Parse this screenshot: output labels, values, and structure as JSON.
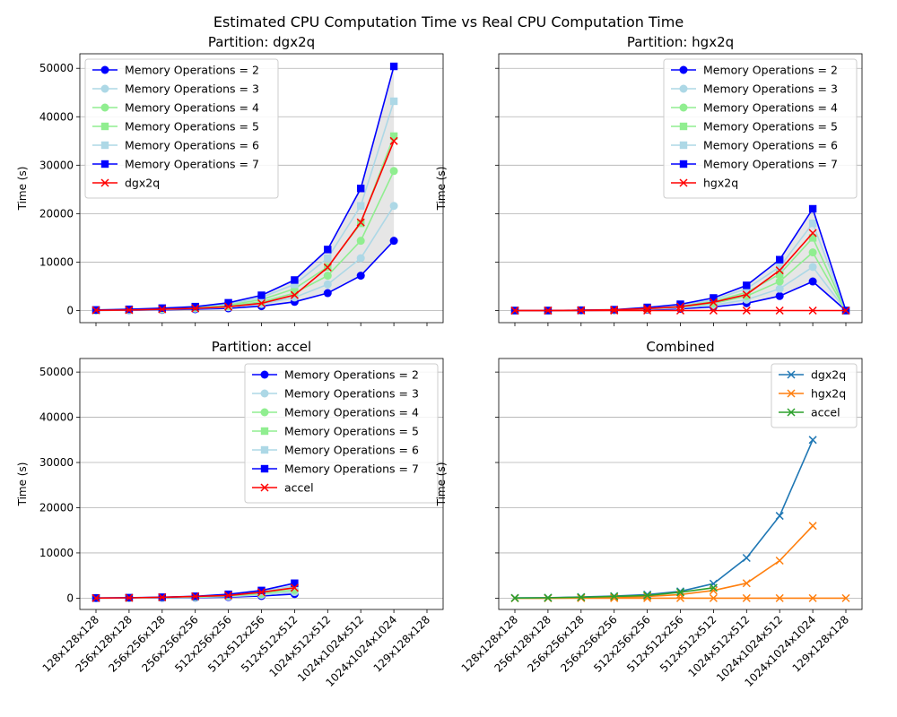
{
  "figure": {
    "title": "Estimated CPU Computation Time vs Real CPU Computation Time"
  },
  "chart_data": [
    {
      "type": "line",
      "title": "Partition: dgx2q",
      "ylabel": "Time (s)",
      "ylim": [
        -2500,
        53000
      ],
      "yticks": [
        0,
        10000,
        20000,
        30000,
        40000,
        50000
      ],
      "grid": "y",
      "legend": "top-left",
      "shade_between": [
        "Memory Operations = 2",
        "Memory Operations = 7"
      ],
      "categories": [
        "128x128x128",
        "256x128x128",
        "256x256x128",
        "256x256x256",
        "512x256x256",
        "512x512x256",
        "512x512x512",
        "1024x512x512",
        "1024x1024x512",
        "1024x1024x1024",
        "129x128x128"
      ],
      "series": [
        {
          "name": "Memory Operations = 2",
          "color": "#0000ff",
          "marker": "circle",
          "values": [
            35,
            70,
            140,
            280,
            450,
            900,
            1800,
            3600,
            7200,
            14400,
            null
          ]
        },
        {
          "name": "Memory Operations = 3",
          "color": "#add8e6",
          "marker": "circle",
          "values": [
            50,
            105,
            210,
            420,
            680,
            1350,
            2700,
            5400,
            10800,
            21600,
            null
          ]
        },
        {
          "name": "Memory Operations = 4",
          "color": "#90ee90",
          "marker": "circle",
          "values": [
            70,
            140,
            280,
            560,
            900,
            1800,
            3600,
            7200,
            14400,
            28800,
            null
          ]
        },
        {
          "name": "Memory Operations = 5",
          "color": "#90ee90",
          "marker": "square",
          "values": [
            90,
            175,
            350,
            700,
            1130,
            2250,
            4500,
            9000,
            18000,
            36000,
            null
          ]
        },
        {
          "name": "Memory Operations = 6",
          "color": "#add8e6",
          "marker": "square",
          "values": [
            105,
            210,
            420,
            840,
            1350,
            2700,
            5400,
            10800,
            21600,
            43200,
            null
          ]
        },
        {
          "name": "Memory Operations = 7",
          "color": "#0000ff",
          "marker": "square",
          "values": [
            125,
            250,
            500,
            800,
            1600,
            3150,
            6300,
            12600,
            25200,
            50400,
            null
          ]
        },
        {
          "name": "dgx2q",
          "color": "#ff0000",
          "marker": "x",
          "values": [
            50,
            100,
            250,
            450,
            800,
            1500,
            3200,
            8900,
            18200,
            35000,
            null
          ]
        }
      ]
    },
    {
      "type": "line",
      "title": "Partition: hgx2q",
      "ylabel": "Time (s)",
      "ylim": [
        -2500,
        53000
      ],
      "yticks": [
        0,
        10000,
        20000,
        30000,
        40000,
        50000
      ],
      "grid": "y",
      "legend": "top-right",
      "shade_between": [
        "Memory Operations = 2",
        "Memory Operations = 7"
      ],
      "categories": [
        "128x128x128",
        "256x128x128",
        "256x256x128",
        "256x256x256",
        "512x256x256",
        "512x512x256",
        "512x512x512",
        "1024x512x512",
        "1024x1024x512",
        "1024x1024x1024",
        "129x128x128"
      ],
      "series": [
        {
          "name": "Memory Operations = 2",
          "color": "#0000ff",
          "marker": "circle",
          "values": [
            0,
            0,
            20,
            50,
            180,
            370,
            740,
            1500,
            3000,
            6000,
            0
          ]
        },
        {
          "name": "Memory Operations = 3",
          "color": "#add8e6",
          "marker": "circle",
          "values": [
            0,
            0,
            30,
            80,
            280,
            560,
            1120,
            2250,
            4500,
            9000,
            0
          ]
        },
        {
          "name": "Memory Operations = 4",
          "color": "#90ee90",
          "marker": "circle",
          "values": [
            0,
            0,
            40,
            100,
            370,
            750,
            1500,
            3000,
            6000,
            12000,
            0
          ]
        },
        {
          "name": "Memory Operations = 5",
          "color": "#90ee90",
          "marker": "square",
          "values": [
            0,
            0,
            50,
            130,
            470,
            940,
            1880,
            3750,
            7500,
            15000,
            0
          ]
        },
        {
          "name": "Memory Operations = 6",
          "color": "#add8e6",
          "marker": "square",
          "values": [
            0,
            0,
            60,
            150,
            560,
            1130,
            2250,
            4500,
            9000,
            18000,
            0
          ]
        },
        {
          "name": "Memory Operations = 7",
          "color": "#0000ff",
          "marker": "square",
          "values": [
            0,
            0,
            70,
            180,
            650,
            1300,
            2600,
            5200,
            10500,
            21000,
            0
          ]
        },
        {
          "name": "hgx2q",
          "color": "#ff0000",
          "marker": "x",
          "values": [
            0,
            0,
            0,
            0,
            0,
            0,
            0,
            0,
            0,
            0,
            0
          ]
        }
      ],
      "extra_line": {
        "name": "hgx2q",
        "color": "#ff0000",
        "marker": "x",
        "values": [
          0,
          0,
          50,
          150,
          400,
          800,
          1700,
          3300,
          8300,
          16000,
          null
        ]
      }
    },
    {
      "type": "line",
      "title": "Partition: accel",
      "ylabel": "Time (s)",
      "ylim": [
        -2500,
        53000
      ],
      "yticks": [
        0,
        10000,
        20000,
        30000,
        40000,
        50000
      ],
      "grid": "y",
      "legend": "top-right",
      "shade_between": [
        "Memory Operations = 2",
        "Memory Operations = 7"
      ],
      "categories": [
        "128x128x128",
        "256x128x128",
        "256x256x128",
        "256x256x256",
        "512x256x256",
        "512x512x256",
        "512x512x512",
        "1024x512x512",
        "1024x1024x512",
        "1024x1024x1024",
        "129x128x128"
      ],
      "series": [
        {
          "name": "Memory Operations = 2",
          "color": "#0000ff",
          "marker": "circle",
          "values": [
            10,
            30,
            60,
            120,
            240,
            480,
            900,
            null,
            null,
            null,
            null
          ]
        },
        {
          "name": "Memory Operations = 3",
          "color": "#add8e6",
          "marker": "circle",
          "values": [
            15,
            45,
            90,
            180,
            360,
            720,
            1350,
            null,
            null,
            null,
            null
          ]
        },
        {
          "name": "Memory Operations = 4",
          "color": "#90ee90",
          "marker": "circle",
          "values": [
            20,
            60,
            120,
            240,
            480,
            960,
            1800,
            null,
            null,
            null,
            null
          ]
        },
        {
          "name": "Memory Operations = 5",
          "color": "#90ee90",
          "marker": "square",
          "values": [
            25,
            75,
            150,
            300,
            600,
            1200,
            2250,
            null,
            null,
            null,
            null
          ]
        },
        {
          "name": "Memory Operations = 6",
          "color": "#add8e6",
          "marker": "square",
          "values": [
            30,
            90,
            180,
            360,
            720,
            1440,
            2700,
            null,
            null,
            null,
            null
          ]
        },
        {
          "name": "Memory Operations = 7",
          "color": "#0000ff",
          "marker": "square",
          "values": [
            35,
            105,
            210,
            420,
            850,
            1700,
            3300,
            null,
            null,
            null,
            null
          ]
        },
        {
          "name": "accel",
          "color": "#ff0000",
          "marker": "x",
          "values": [
            20,
            70,
            200,
            400,
            600,
            1300,
            2300,
            null,
            null,
            null,
            null
          ]
        }
      ]
    },
    {
      "type": "line",
      "title": "Combined",
      "ylabel": "Time (s)",
      "ylim": [
        -2500,
        53000
      ],
      "yticks": [
        0,
        10000,
        20000,
        30000,
        40000,
        50000
      ],
      "grid": "y",
      "legend": "top-right",
      "categories": [
        "128x128x128",
        "256x128x128",
        "256x256x128",
        "256x256x256",
        "512x256x256",
        "512x512x256",
        "512x512x512",
        "1024x512x512",
        "1024x1024x512",
        "1024x1024x1024",
        "129x128x128"
      ],
      "series": [
        {
          "name": "dgx2q",
          "color": "#1f77b4",
          "marker": "x",
          "values": [
            50,
            100,
            250,
            450,
            800,
            1500,
            3200,
            8900,
            18200,
            35000,
            null
          ]
        },
        {
          "name": "hgx2q",
          "color": "#ff7f0e",
          "marker": "x",
          "values": [
            0,
            0,
            50,
            150,
            400,
            800,
            1700,
            3300,
            8300,
            16000,
            null
          ]
        },
        {
          "name": "accel",
          "color": "#2ca02c",
          "marker": "x",
          "values": [
            20,
            70,
            200,
            400,
            600,
            1300,
            2300,
            null,
            null,
            null,
            null
          ]
        }
      ],
      "zero_line": {
        "color": "#ff7f0e",
        "values": [
          0,
          0,
          0,
          0,
          0,
          0,
          0,
          0,
          0,
          0,
          0
        ]
      }
    }
  ]
}
